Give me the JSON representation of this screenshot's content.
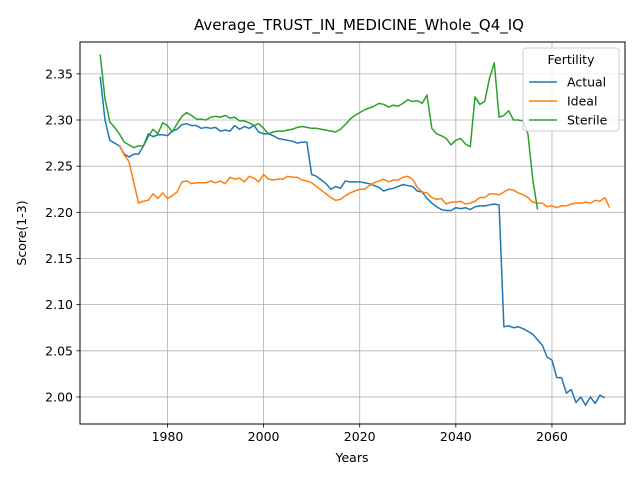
{
  "chart_data": {
    "type": "line",
    "title": "Average_TRUST_IN_MEDICINE_Whole_Q4_IQ",
    "xlabel": "Years",
    "ylabel": "Score(1-3)",
    "xlim": [
      1961.8,
      2075.2
    ],
    "ylim": [
      1.9707,
      2.3845
    ],
    "xticks": [
      1980,
      2000,
      2020,
      2040,
      2060
    ],
    "yticks": [
      2.0,
      2.05,
      2.1,
      2.15,
      2.2,
      2.25,
      2.3,
      2.35
    ],
    "grid": true,
    "legend": {
      "title": "Fertility",
      "placement": "top-right",
      "entries": [
        "Actual",
        "Ideal",
        "Sterile"
      ]
    },
    "series": [
      {
        "name": "Actual",
        "color": "#1f77b4",
        "points": [
          [
            1966,
            2.347
          ],
          [
            1967,
            2.3
          ],
          [
            1968,
            2.278
          ],
          [
            1969,
            2.275
          ],
          [
            1970,
            2.272
          ],
          [
            1971,
            2.263
          ],
          [
            1972,
            2.26
          ],
          [
            1973,
            2.263
          ],
          [
            1974,
            2.263
          ],
          [
            1975,
            2.272
          ],
          [
            1976,
            2.285
          ],
          [
            1977,
            2.282
          ],
          [
            1978,
            2.284
          ],
          [
            1979,
            2.284
          ],
          [
            1980,
            2.283
          ],
          [
            1981,
            2.288
          ],
          [
            1982,
            2.29
          ],
          [
            1983,
            2.295
          ],
          [
            1984,
            2.296
          ],
          [
            1985,
            2.294
          ],
          [
            1986,
            2.294
          ],
          [
            1987,
            2.291
          ],
          [
            1988,
            2.292
          ],
          [
            1989,
            2.291
          ],
          [
            1990,
            2.292
          ],
          [
            1991,
            2.288
          ],
          [
            1992,
            2.289
          ],
          [
            1993,
            2.288
          ],
          [
            1994,
            2.294
          ],
          [
            1995,
            2.29
          ],
          [
            1996,
            2.293
          ],
          [
            1997,
            2.291
          ],
          [
            1998,
            2.294
          ],
          [
            1999,
            2.287
          ],
          [
            2000,
            2.285
          ],
          [
            2001,
            2.285
          ],
          [
            2002,
            2.283
          ],
          [
            2003,
            2.28
          ],
          [
            2004,
            2.279
          ],
          [
            2005,
            2.278
          ],
          [
            2006,
            2.277
          ],
          [
            2007,
            2.275
          ],
          [
            2008,
            2.276
          ],
          [
            2009,
            2.276
          ],
          [
            2010,
            2.241
          ],
          [
            2011,
            2.239
          ],
          [
            2012,
            2.235
          ],
          [
            2013,
            2.231
          ],
          [
            2014,
            2.225
          ],
          [
            2015,
            2.228
          ],
          [
            2016,
            2.226
          ],
          [
            2017,
            2.234
          ],
          [
            2018,
            2.233
          ],
          [
            2019,
            2.233
          ],
          [
            2020,
            2.233
          ],
          [
            2021,
            2.232
          ],
          [
            2022,
            2.231
          ],
          [
            2023,
            2.229
          ],
          [
            2024,
            2.227
          ],
          [
            2025,
            2.223
          ],
          [
            2026,
            2.225
          ],
          [
            2027,
            2.226
          ],
          [
            2028,
            2.228
          ],
          [
            2029,
            2.23
          ],
          [
            2030,
            2.229
          ],
          [
            2031,
            2.228
          ],
          [
            2032,
            2.223
          ],
          [
            2033,
            2.222
          ],
          [
            2034,
            2.215
          ],
          [
            2035,
            2.21
          ],
          [
            2036,
            2.206
          ],
          [
            2037,
            2.203
          ],
          [
            2038,
            2.202
          ],
          [
            2039,
            2.202
          ],
          [
            2040,
            2.205
          ],
          [
            2041,
            2.204
          ],
          [
            2042,
            2.205
          ],
          [
            2043,
            2.203
          ],
          [
            2044,
            2.206
          ],
          [
            2045,
            2.207
          ],
          [
            2046,
            2.207
          ],
          [
            2047,
            2.208
          ],
          [
            2048,
            2.209
          ],
          [
            2049,
            2.208
          ],
          [
            2050,
            2.076
          ],
          [
            2051,
            2.077
          ],
          [
            2052,
            2.075
          ],
          [
            2053,
            2.076
          ],
          [
            2054,
            2.074
          ],
          [
            2055,
            2.071
          ],
          [
            2056,
            2.068
          ],
          [
            2057,
            2.062
          ],
          [
            2058,
            2.056
          ],
          [
            2059,
            2.043
          ],
          [
            2060,
            2.04
          ],
          [
            2061,
            2.021
          ],
          [
            2062,
            2.021
          ],
          [
            2063,
            2.004
          ],
          [
            2064,
            2.008
          ],
          [
            2065,
            1.994
          ],
          [
            2066,
            2.0
          ],
          [
            2067,
            1.991
          ],
          [
            2068,
            2.0
          ],
          [
            2069,
            1.993
          ],
          [
            2070,
            2.002
          ],
          [
            2071,
            1.999
          ]
        ]
      },
      {
        "name": "Ideal",
        "color": "#ff7f0e",
        "points": [
          [
            1970,
            2.273
          ],
          [
            1971,
            2.262
          ],
          [
            1972,
            2.255
          ],
          [
            1973,
            2.232
          ],
          [
            1974,
            2.21
          ],
          [
            1975,
            2.212
          ],
          [
            1976,
            2.213
          ],
          [
            1977,
            2.22
          ],
          [
            1978,
            2.215
          ],
          [
            1979,
            2.221
          ],
          [
            1980,
            2.215
          ],
          [
            1981,
            2.218
          ],
          [
            1982,
            2.222
          ],
          [
            1983,
            2.233
          ],
          [
            1984,
            2.234
          ],
          [
            1985,
            2.231
          ],
          [
            1986,
            2.232
          ],
          [
            1987,
            2.232
          ],
          [
            1988,
            2.232
          ],
          [
            1989,
            2.234
          ],
          [
            1990,
            2.232
          ],
          [
            1991,
            2.234
          ],
          [
            1992,
            2.231
          ],
          [
            1993,
            2.238
          ],
          [
            1994,
            2.236
          ],
          [
            1995,
            2.237
          ],
          [
            1996,
            2.233
          ],
          [
            1997,
            2.239
          ],
          [
            1998,
            2.237
          ],
          [
            1999,
            2.233
          ],
          [
            2000,
            2.241
          ],
          [
            2001,
            2.236
          ],
          [
            2002,
            2.235
          ],
          [
            2003,
            2.236
          ],
          [
            2004,
            2.236
          ],
          [
            2005,
            2.239
          ],
          [
            2006,
            2.238
          ],
          [
            2007,
            2.238
          ],
          [
            2008,
            2.235
          ],
          [
            2009,
            2.234
          ],
          [
            2010,
            2.232
          ],
          [
            2011,
            2.228
          ],
          [
            2012,
            2.224
          ],
          [
            2013,
            2.22
          ],
          [
            2014,
            2.216
          ],
          [
            2015,
            2.213
          ],
          [
            2016,
            2.214
          ],
          [
            2017,
            2.218
          ],
          [
            2018,
            2.221
          ],
          [
            2019,
            2.223
          ],
          [
            2020,
            2.225
          ],
          [
            2021,
            2.225
          ],
          [
            2022,
            2.229
          ],
          [
            2023,
            2.232
          ],
          [
            2024,
            2.234
          ],
          [
            2025,
            2.236
          ],
          [
            2026,
            2.233
          ],
          [
            2027,
            2.235
          ],
          [
            2028,
            2.235
          ],
          [
            2029,
            2.238
          ],
          [
            2030,
            2.239
          ],
          [
            2031,
            2.236
          ],
          [
            2032,
            2.227
          ],
          [
            2033,
            2.222
          ],
          [
            2034,
            2.221
          ],
          [
            2035,
            2.216
          ],
          [
            2036,
            2.214
          ],
          [
            2037,
            2.215
          ],
          [
            2038,
            2.209
          ],
          [
            2039,
            2.211
          ],
          [
            2040,
            2.211
          ],
          [
            2041,
            2.212
          ],
          [
            2042,
            2.209
          ],
          [
            2043,
            2.21
          ],
          [
            2044,
            2.212
          ],
          [
            2045,
            2.216
          ],
          [
            2046,
            2.216
          ],
          [
            2047,
            2.22
          ],
          [
            2048,
            2.22
          ],
          [
            2049,
            2.219
          ],
          [
            2050,
            2.222
          ],
          [
            2051,
            2.225
          ],
          [
            2052,
            2.224
          ],
          [
            2053,
            2.221
          ],
          [
            2054,
            2.219
          ],
          [
            2055,
            2.216
          ],
          [
            2056,
            2.211
          ],
          [
            2057,
            2.21
          ],
          [
            2058,
            2.21
          ],
          [
            2059,
            2.206
          ],
          [
            2060,
            2.207
          ],
          [
            2061,
            2.205
          ],
          [
            2062,
            2.207
          ],
          [
            2063,
            2.207
          ],
          [
            2064,
            2.209
          ],
          [
            2065,
            2.21
          ],
          [
            2066,
            2.21
          ],
          [
            2067,
            2.211
          ],
          [
            2068,
            2.21
          ],
          [
            2069,
            2.213
          ],
          [
            2070,
            2.212
          ],
          [
            2071,
            2.216
          ],
          [
            2072,
            2.205
          ]
        ]
      },
      {
        "name": "Sterile",
        "color": "#2ca02c",
        "points": [
          [
            1966,
            2.371
          ],
          [
            1967,
            2.323
          ],
          [
            1968,
            2.298
          ],
          [
            1969,
            2.292
          ],
          [
            1970,
            2.285
          ],
          [
            1971,
            2.276
          ],
          [
            1972,
            2.273
          ],
          [
            1973,
            2.27
          ],
          [
            1974,
            2.272
          ],
          [
            1975,
            2.272
          ],
          [
            1976,
            2.282
          ],
          [
            1977,
            2.29
          ],
          [
            1978,
            2.285
          ],
          [
            1979,
            2.297
          ],
          [
            1980,
            2.294
          ],
          [
            1981,
            2.287
          ],
          [
            1982,
            2.296
          ],
          [
            1983,
            2.304
          ],
          [
            1984,
            2.308
          ],
          [
            1985,
            2.305
          ],
          [
            1986,
            2.301
          ],
          [
            1987,
            2.301
          ],
          [
            1988,
            2.3
          ],
          [
            1989,
            2.303
          ],
          [
            1990,
            2.304
          ],
          [
            1991,
            2.303
          ],
          [
            1992,
            2.305
          ],
          [
            1993,
            2.302
          ],
          [
            1994,
            2.303
          ],
          [
            1995,
            2.299
          ],
          [
            1996,
            2.299
          ],
          [
            1997,
            2.297
          ],
          [
            1998,
            2.294
          ],
          [
            1999,
            2.296
          ],
          [
            2000,
            2.291
          ],
          [
            2001,
            2.285
          ],
          [
            2002,
            2.287
          ],
          [
            2003,
            2.288
          ],
          [
            2004,
            2.288
          ],
          [
            2005,
            2.289
          ],
          [
            2006,
            2.29
          ],
          [
            2007,
            2.292
          ],
          [
            2008,
            2.293
          ],
          [
            2009,
            2.292
          ],
          [
            2010,
            2.291
          ],
          [
            2011,
            2.291
          ],
          [
            2012,
            2.29
          ],
          [
            2013,
            2.289
          ],
          [
            2014,
            2.288
          ],
          [
            2015,
            2.287
          ],
          [
            2016,
            2.29
          ],
          [
            2017,
            2.295
          ],
          [
            2018,
            2.301
          ],
          [
            2019,
            2.305
          ],
          [
            2020,
            2.308
          ],
          [
            2021,
            2.311
          ],
          [
            2022,
            2.313
          ],
          [
            2023,
            2.315
          ],
          [
            2024,
            2.318
          ],
          [
            2025,
            2.317
          ],
          [
            2026,
            2.314
          ],
          [
            2027,
            2.316
          ],
          [
            2028,
            2.315
          ],
          [
            2029,
            2.318
          ],
          [
            2030,
            2.322
          ],
          [
            2031,
            2.32
          ],
          [
            2032,
            2.321
          ],
          [
            2033,
            2.318
          ],
          [
            2034,
            2.327
          ],
          [
            2035,
            2.291
          ],
          [
            2036,
            2.285
          ],
          [
            2037,
            2.283
          ],
          [
            2038,
            2.28
          ],
          [
            2039,
            2.273
          ],
          [
            2040,
            2.278
          ],
          [
            2041,
            2.28
          ],
          [
            2042,
            2.274
          ],
          [
            2043,
            2.271
          ],
          [
            2044,
            2.325
          ],
          [
            2045,
            2.317
          ],
          [
            2046,
            2.32
          ],
          [
            2047,
            2.345
          ],
          [
            2048,
            2.362
          ],
          [
            2049,
            2.303
          ],
          [
            2050,
            2.305
          ],
          [
            2051,
            2.31
          ],
          [
            2052,
            2.3
          ],
          [
            2053,
            2.3
          ],
          [
            2054,
            2.299
          ],
          [
            2055,
            2.285
          ],
          [
            2056,
            2.236
          ],
          [
            2057,
            2.203
          ]
        ]
      }
    ]
  }
}
